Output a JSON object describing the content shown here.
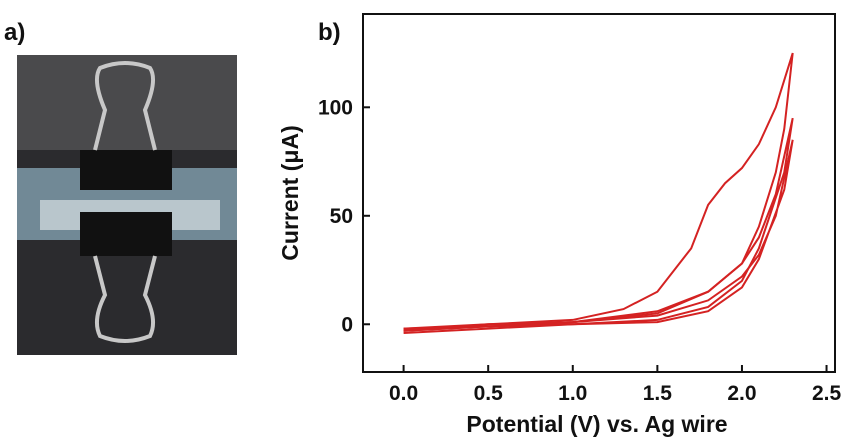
{
  "photo_label": "a)",
  "chart_data": {
    "type": "line",
    "panel_label": "b)",
    "x_label": "Potential (V) vs. Ag wire",
    "y_label": "Current (μA)",
    "xlim": [
      -0.24,
      2.55
    ],
    "ylim": [
      -22,
      143
    ],
    "xticks": [
      {
        "value": 0,
        "label": "0.0"
      },
      0.5,
      {
        "value": 1,
        "label": "1.0"
      },
      1.5,
      {
        "value": 2,
        "label": "2.0"
      },
      2.5
    ],
    "yticks": [
      0,
      50,
      100
    ],
    "series": [
      {
        "color": "#d42222",
        "x": [
          0,
          0.5,
          1.0,
          1.3,
          1.5,
          1.7,
          1.8,
          1.9,
          2.0,
          2.1,
          2.2,
          2.3,
          2.25,
          2.2,
          2.1,
          2.0,
          1.8,
          1.5,
          1.0,
          0.5,
          0
        ],
        "values": [
          -3,
          0,
          2,
          7,
          15,
          35,
          55,
          65,
          72,
          83,
          100,
          125,
          90,
          70,
          45,
          28,
          15,
          5,
          1,
          -1,
          -2
        ]
      },
      {
        "color": "#d42222",
        "x": [
          0,
          0.5,
          1.0,
          1.5,
          1.8,
          2.0,
          2.1,
          2.2,
          2.3,
          2.25,
          2.1,
          2.0,
          1.8,
          1.5,
          1.0,
          0.5,
          0
        ],
        "values": [
          -2,
          0,
          1,
          6,
          15,
          28,
          40,
          60,
          95,
          70,
          35,
          20,
          8,
          2,
          0,
          -1,
          -3
        ]
      },
      {
        "color": "#d42222",
        "x": [
          0,
          0.5,
          1.0,
          1.5,
          1.8,
          2.0,
          2.1,
          2.2,
          2.3,
          2.25,
          2.1,
          2.0,
          1.8,
          1.5,
          1.0,
          0.5,
          0
        ],
        "values": [
          -3,
          -1,
          1,
          4,
          11,
          22,
          32,
          50,
          85,
          62,
          30,
          17,
          6,
          1,
          0,
          -2,
          -4
        ]
      }
    ]
  }
}
